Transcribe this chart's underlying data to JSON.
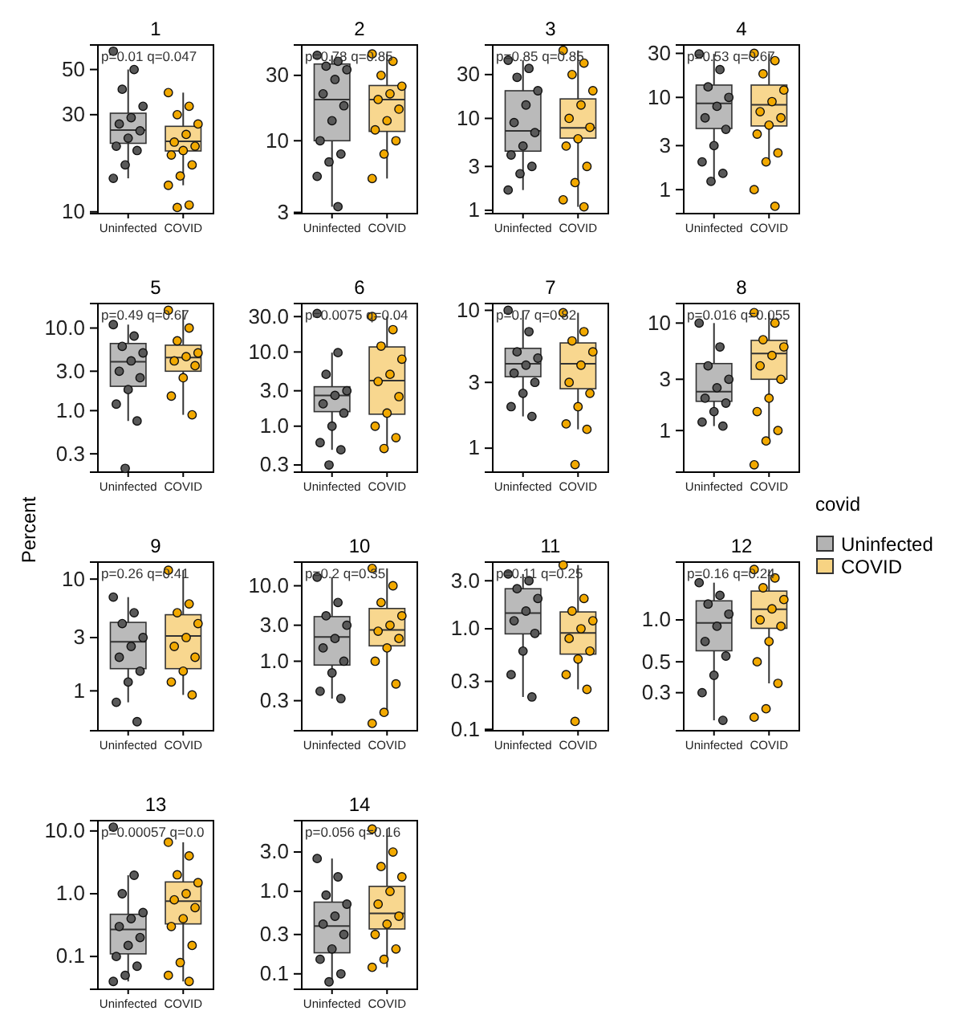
{
  "chart_data": [
    {
      "type": "box",
      "title": "1",
      "log": true,
      "categories": [
        "Uninfected",
        "COVID"
      ],
      "ylim": [
        9.8,
        66
      ],
      "yticks": [
        10,
        30,
        50
      ],
      "annotations": [
        "p=0.01 q=0.047"
      ],
      "series": [
        {
          "type": "box",
          "color": "#b3b3b3",
          "boxes": [
            {
              "low": 14.6,
              "q1": 21.7,
              "median": 25.2,
              "q3": 30.5,
              "high": 50
            },
            null
          ]
        },
        {
          "type": "box",
          "color": "#f7d383",
          "boxes": [
            null,
            {
              "low": 13.5,
              "q1": 19.9,
              "median": 22.2,
              "q3": 26.3,
              "high": 38.5
            }
          ]
        },
        {
          "type": "scatter",
          "color": "#595959",
          "x": [
            "Uninfected",
            "Uninfected",
            "Uninfected",
            "Uninfected",
            "Uninfected",
            "Uninfected",
            "Uninfected",
            "Uninfected",
            "Uninfected",
            "Uninfected",
            "Uninfected",
            "Uninfected"
          ],
          "values": [
            61.5,
            50,
            40,
            33,
            29,
            27,
            25,
            23,
            21,
            20,
            17,
            14.6
          ]
        },
        {
          "type": "scatter",
          "color": "#f2a900",
          "x": [
            "COVID",
            "COVID",
            "COVID",
            "COVID",
            "COVID",
            "COVID",
            "COVID",
            "COVID",
            "COVID",
            "COVID",
            "COVID",
            "COVID",
            "COVID",
            "COVID"
          ],
          "values": [
            38.5,
            33,
            30,
            27,
            24,
            22,
            21,
            20,
            19,
            17,
            15,
            13.5,
            10.8,
            10.5
          ]
        }
      ]
    },
    {
      "type": "box",
      "title": "2",
      "log": true,
      "categories": [
        "Uninfected",
        "COVID"
      ],
      "ylim": [
        2.94,
        50
      ],
      "yticks": [
        3,
        10,
        30
      ],
      "annotations": [
        "p=0.78 q=0.85"
      ],
      "series": [
        {
          "type": "box",
          "color": "#b3b3b3",
          "boxes": [
            {
              "low": 3.3,
              "q1": 10,
              "median": 20,
              "q3": 36.3,
              "high": 42
            },
            null
          ]
        },
        {
          "type": "box",
          "color": "#f7d383",
          "boxes": [
            null,
            {
              "low": 5.3,
              "q1": 11.7,
              "median": 20,
              "q3": 25.3,
              "high": 43
            }
          ]
        },
        {
          "type": "scatter",
          "color": "#595959",
          "x": [
            "Uninfected",
            "Uninfected",
            "Uninfected",
            "Uninfected",
            "Uninfected",
            "Uninfected",
            "Uninfected",
            "Uninfected",
            "Uninfected",
            "Uninfected",
            "Uninfected",
            "Uninfected",
            "Uninfected"
          ],
          "values": [
            42,
            38,
            35,
            33,
            28,
            22,
            18,
            14,
            10,
            8,
            7,
            5.5,
            3.3
          ]
        },
        {
          "type": "scatter",
          "color": "#f2a900",
          "x": [
            "COVID",
            "COVID",
            "COVID",
            "COVID",
            "COVID",
            "COVID",
            "COVID",
            "COVID",
            "COVID",
            "COVID",
            "COVID",
            "COVID"
          ],
          "values": [
            43,
            38,
            30,
            25,
            22,
            20,
            17,
            14,
            12,
            10,
            8,
            5.3
          ]
        }
      ]
    },
    {
      "type": "box",
      "title": "3",
      "log": true,
      "categories": [
        "Uninfected",
        "COVID"
      ],
      "ylim": [
        0.92,
        63
      ],
      "yticks": [
        1,
        3,
        10,
        30
      ],
      "annotations": [
        "p=0.85 q=0.85"
      ],
      "series": [
        {
          "type": "box",
          "color": "#b3b3b3",
          "boxes": [
            {
              "low": 1.66,
              "q1": 4.4,
              "median": 7.3,
              "q3": 20,
              "high": 43
            },
            null
          ]
        },
        {
          "type": "box",
          "color": "#f7d383",
          "boxes": [
            null,
            {
              "low": 1.09,
              "q1": 6.1,
              "median": 7.9,
              "q3": 16.3,
              "high": 55
            }
          ]
        },
        {
          "type": "scatter",
          "color": "#595959",
          "x": [
            "Uninfected",
            "Uninfected",
            "Uninfected",
            "Uninfected",
            "Uninfected",
            "Uninfected",
            "Uninfected",
            "Uninfected",
            "Uninfected",
            "Uninfected",
            "Uninfected",
            "Uninfected"
          ],
          "values": [
            43,
            35,
            28,
            20,
            14,
            9,
            7,
            5,
            4,
            3,
            2.5,
            1.66
          ]
        },
        {
          "type": "scatter",
          "color": "#f2a900",
          "x": [
            "COVID",
            "COVID",
            "COVID",
            "COVID",
            "COVID",
            "COVID",
            "COVID",
            "COVID",
            "COVID",
            "COVID",
            "COVID",
            "COVID",
            "COVID"
          ],
          "values": [
            55,
            40,
            30,
            20,
            14,
            10,
            8,
            6,
            5,
            3,
            2,
            1.3,
            1.09
          ]
        }
      ]
    },
    {
      "type": "box",
      "title": "4",
      "log": true,
      "categories": [
        "Uninfected",
        "COVID"
      ],
      "ylim": [
        0.55,
        37
      ],
      "yticks": [
        1,
        3,
        10,
        30
      ],
      "annotations": [
        "p=0.53 q=0.67"
      ],
      "series": [
        {
          "type": "box",
          "color": "#b3b3b3",
          "boxes": [
            {
              "low": 1.23,
              "q1": 4.6,
              "median": 8.6,
              "q3": 13.6,
              "high": 29.6
            },
            null
          ]
        },
        {
          "type": "box",
          "color": "#f7d383",
          "boxes": [
            null,
            {
              "low": 2,
              "q1": 4.9,
              "median": 8.3,
              "q3": 13.6,
              "high": 30
            }
          ]
        },
        {
          "type": "scatter",
          "color": "#595959",
          "x": [
            "Uninfected",
            "Uninfected",
            "Uninfected",
            "Uninfected",
            "Uninfected",
            "Uninfected",
            "Uninfected",
            "Uninfected",
            "Uninfected",
            "Uninfected",
            "Uninfected"
          ],
          "values": [
            29.6,
            20,
            13,
            10,
            8,
            6,
            4.5,
            3,
            2,
            1.5,
            1.23
          ]
        },
        {
          "type": "scatter",
          "color": "#f2a900",
          "x": [
            "COVID",
            "COVID",
            "COVID",
            "COVID",
            "COVID",
            "COVID",
            "COVID",
            "COVID",
            "COVID",
            "COVID",
            "COVID",
            "COVID",
            "COVID"
          ],
          "values": [
            30,
            25,
            18,
            12,
            9,
            7,
            6,
            5,
            4,
            2.5,
            2,
            1,
            0.66
          ]
        }
      ]
    },
    {
      "type": "box",
      "title": "5",
      "log": true,
      "categories": [
        "Uninfected",
        "COVID"
      ],
      "ylim": [
        0.18,
        19.8
      ],
      "yticks": [
        {
          "value": 0.3,
          "label": "0.3"
        },
        {
          "value": 1,
          "label": "1.0"
        },
        {
          "value": 3,
          "label": "3.0"
        },
        {
          "value": 10,
          "label": "10.0"
        }
      ],
      "annotations": [
        "p=0.49 q=0.67"
      ],
      "series": [
        {
          "type": "box",
          "color": "#b3b3b3",
          "boxes": [
            {
              "low": 0.75,
              "q1": 1.97,
              "median": 3.9,
              "q3": 6.5,
              "high": 11
            },
            null
          ]
        },
        {
          "type": "box",
          "color": "#f7d383",
          "boxes": [
            null,
            {
              "low": 0.89,
              "q1": 3,
              "median": 4.4,
              "q3": 6.2,
              "high": 16.4
            }
          ]
        },
        {
          "type": "scatter",
          "color": "#595959",
          "x": [
            "Uninfected",
            "Uninfected",
            "Uninfected",
            "Uninfected",
            "Uninfected",
            "Uninfected",
            "Uninfected",
            "Uninfected",
            "Uninfected",
            "Uninfected",
            "Uninfected"
          ],
          "values": [
            11,
            8,
            6,
            5,
            4,
            3,
            2.5,
            1.8,
            1.2,
            0.75,
            0.2
          ]
        },
        {
          "type": "scatter",
          "color": "#f2a900",
          "x": [
            "COVID",
            "COVID",
            "COVID",
            "COVID",
            "COVID",
            "COVID",
            "COVID",
            "COVID",
            "COVID",
            "COVID"
          ],
          "values": [
            16.4,
            10,
            7,
            5,
            4.5,
            4,
            3.5,
            2.5,
            1.5,
            0.89
          ]
        }
      ]
    },
    {
      "type": "box",
      "title": "6",
      "log": true,
      "categories": [
        "Uninfected",
        "COVID"
      ],
      "ylim": [
        0.24,
        45
      ],
      "yticks": [
        {
          "value": 0.3,
          "label": "0.3"
        },
        {
          "value": 1,
          "label": "1.0"
        },
        {
          "value": 3,
          "label": "3.0"
        },
        {
          "value": 10,
          "label": "10.0"
        },
        {
          "value": 30,
          "label": "30.0"
        }
      ],
      "annotations": [
        "p=0.0075 q=0.04"
      ],
      "series": [
        {
          "type": "box",
          "color": "#b3b3b3",
          "boxes": [
            {
              "low": 0.48,
              "q1": 1.57,
              "median": 2.6,
              "q3": 3.4,
              "high": 9.8
            },
            null
          ]
        },
        {
          "type": "box",
          "color": "#f7d383",
          "boxes": [
            null,
            {
              "low": 0.48,
              "q1": 1.45,
              "median": 4.1,
              "q3": 11.7,
              "high": 30
            }
          ]
        },
        {
          "type": "scatter",
          "color": "#595959",
          "x": [
            "Uninfected",
            "Uninfected",
            "Uninfected",
            "Uninfected",
            "Uninfected",
            "Uninfected",
            "Uninfected",
            "Uninfected",
            "Uninfected",
            "Uninfected",
            "Uninfected"
          ],
          "values": [
            33,
            9.8,
            5,
            3,
            2.6,
            2,
            1.5,
            1,
            0.6,
            0.48,
            0.3
          ]
        },
        {
          "type": "scatter",
          "color": "#f2a900",
          "x": [
            "COVID",
            "COVID",
            "COVID",
            "COVID",
            "COVID",
            "COVID",
            "COVID",
            "COVID",
            "COVID",
            "COVID",
            "COVID"
          ],
          "values": [
            30,
            20,
            12,
            8,
            5,
            4,
            2.5,
            1.5,
            1,
            0.7,
            0.5
          ]
        }
      ]
    },
    {
      "type": "box",
      "title": "7",
      "log": true,
      "categories": [
        "Uninfected",
        "COVID"
      ],
      "ylim": [
        0.67,
        11.2
      ],
      "yticks": [
        1,
        3,
        10
      ],
      "annotations": [
        "p=0.7 q=0.82"
      ],
      "series": [
        {
          "type": "box",
          "color": "#b3b3b3",
          "boxes": [
            {
              "low": 1.7,
              "q1": 3.3,
              "median": 4.1,
              "q3": 5.3,
              "high": 10
            },
            null
          ]
        },
        {
          "type": "box",
          "color": "#f7d383",
          "boxes": [
            null,
            {
              "low": 1.37,
              "q1": 2.7,
              "median": 4.1,
              "q3": 5.8,
              "high": 9.6
            }
          ]
        },
        {
          "type": "scatter",
          "color": "#595959",
          "x": [
            "Uninfected",
            "Uninfected",
            "Uninfected",
            "Uninfected",
            "Uninfected",
            "Uninfected",
            "Uninfected",
            "Uninfected",
            "Uninfected",
            "Uninfected"
          ],
          "values": [
            10,
            7,
            5,
            4.5,
            4,
            3.5,
            3,
            2.5,
            2,
            1.7
          ]
        },
        {
          "type": "scatter",
          "color": "#f2a900",
          "x": [
            "COVID",
            "COVID",
            "COVID",
            "COVID",
            "COVID",
            "COVID",
            "COVID",
            "COVID",
            "COVID",
            "COVID",
            "COVID"
          ],
          "values": [
            9.6,
            7,
            6,
            5,
            4,
            3,
            2.5,
            2,
            1.5,
            1.37,
            0.76
          ]
        }
      ]
    },
    {
      "type": "box",
      "title": "8",
      "log": true,
      "legend": "right",
      "legend_title": "covid",
      "categories": [
        "Uninfected",
        "COVID"
      ],
      "ylim": [
        0.41,
        15.2
      ],
      "yticks": [
        1,
        3,
        10
      ],
      "annotations": [
        "p=0.016 q=0.055"
      ],
      "series": [
        {
          "name": "Uninfected",
          "type": "box",
          "color": "#b3b3b3",
          "boxes": [
            {
              "low": 1.1,
              "q1": 1.87,
              "median": 2.3,
              "q3": 4.2,
              "high": 10
            },
            null
          ]
        },
        {
          "name": "COVID",
          "type": "box",
          "color": "#f7d383",
          "boxes": [
            null,
            {
              "low": 0.8,
              "q1": 3,
              "median": 5.2,
              "q3": 6.9,
              "high": 12.5
            }
          ]
        },
        {
          "type": "scatter",
          "color": "#595959",
          "x": [
            "Uninfected",
            "Uninfected",
            "Uninfected",
            "Uninfected",
            "Uninfected",
            "Uninfected",
            "Uninfected",
            "Uninfected",
            "Uninfected",
            "Uninfected"
          ],
          "values": [
            10,
            6,
            4,
            3,
            2.5,
            2,
            1.8,
            1.5,
            1.2,
            1.1
          ]
        },
        {
          "type": "scatter",
          "color": "#f2a900",
          "x": [
            "COVID",
            "COVID",
            "COVID",
            "COVID",
            "COVID",
            "COVID",
            "COVID",
            "COVID",
            "COVID",
            "COVID",
            "COVID",
            "COVID"
          ],
          "values": [
            12.5,
            10,
            7,
            6,
            5,
            4,
            3,
            2,
            1.5,
            1,
            0.8,
            0.48
          ]
        }
      ]
    },
    {
      "type": "box",
      "title": "9",
      "ylabel": "Percent",
      "log": true,
      "categories": [
        "Uninfected",
        "COVID"
      ],
      "ylim": [
        0.44,
        14.2
      ],
      "yticks": [
        1,
        3,
        10
      ],
      "annotations": [
        "p=0.26 q=0.41"
      ],
      "series": [
        {
          "type": "box",
          "color": "#b3b3b3",
          "boxes": [
            {
              "low": 0.79,
              "q1": 1.58,
              "median": 2.75,
              "q3": 4.1,
              "high": 6.9
            },
            null
          ]
        },
        {
          "type": "box",
          "color": "#f7d383",
          "boxes": [
            null,
            {
              "low": 0.92,
              "q1": 1.58,
              "median": 3.1,
              "q3": 4.8,
              "high": 12
            }
          ]
        },
        {
          "type": "scatter",
          "color": "#595959",
          "x": [
            "Uninfected",
            "Uninfected",
            "Uninfected",
            "Uninfected",
            "Uninfected",
            "Uninfected",
            "Uninfected",
            "Uninfected",
            "Uninfected",
            "Uninfected"
          ],
          "values": [
            6.9,
            5,
            4,
            3,
            2.5,
            2,
            1.5,
            1.2,
            0.79,
            0.53
          ]
        },
        {
          "type": "scatter",
          "color": "#f2a900",
          "x": [
            "COVID",
            "COVID",
            "COVID",
            "COVID",
            "COVID",
            "COVID",
            "COVID",
            "COVID",
            "COVID",
            "COVID"
          ],
          "values": [
            12,
            6,
            5,
            4,
            3,
            2.5,
            2,
            1.5,
            1.2,
            0.92
          ]
        }
      ]
    },
    {
      "type": "box",
      "title": "10",
      "log": true,
      "categories": [
        "Uninfected",
        "COVID"
      ],
      "ylim": [
        0.12,
        20.6
      ],
      "yticks": [
        {
          "value": 0.3,
          "label": "0.3"
        },
        {
          "value": 1,
          "label": "1.0"
        },
        {
          "value": 3,
          "label": "3.0"
        },
        {
          "value": 10,
          "label": "10.0"
        }
      ],
      "annotations": [
        "p=0.2 q=0.35"
      ],
      "series": [
        {
          "type": "box",
          "color": "#b3b3b3",
          "boxes": [
            {
              "low": 0.32,
              "q1": 0.89,
              "median": 2.1,
              "q3": 3.9,
              "high": 13
            },
            null
          ]
        },
        {
          "type": "box",
          "color": "#f7d383",
          "boxes": [
            null,
            {
              "low": 0.21,
              "q1": 1.6,
              "median": 2.6,
              "q3": 5,
              "high": 17
            }
          ]
        },
        {
          "type": "scatter",
          "color": "#595959",
          "x": [
            "Uninfected",
            "Uninfected",
            "Uninfected",
            "Uninfected",
            "Uninfected",
            "Uninfected",
            "Uninfected",
            "Uninfected",
            "Uninfected",
            "Uninfected"
          ],
          "values": [
            13,
            6,
            4,
            3,
            2,
            1.5,
            1,
            0.7,
            0.4,
            0.32
          ]
        },
        {
          "type": "scatter",
          "color": "#f2a900",
          "x": [
            "COVID",
            "COVID",
            "COVID",
            "COVID",
            "COVID",
            "COVID",
            "COVID",
            "COVID",
            "COVID",
            "COVID",
            "COVID",
            "COVID"
          ],
          "values": [
            17,
            10,
            6,
            4,
            3,
            2.5,
            2,
            1.5,
            1,
            0.5,
            0.21,
            0.15
          ]
        }
      ]
    },
    {
      "type": "box",
      "title": "11",
      "log": true,
      "categories": [
        "Uninfected",
        "COVID"
      ],
      "ylim": [
        0.097,
        4.6
      ],
      "yticks": [
        {
          "value": 0.1,
          "label": "0.1"
        },
        {
          "value": 0.3,
          "label": "0.3"
        },
        {
          "value": 1,
          "label": "1.0"
        },
        {
          "value": 3,
          "label": "3.0"
        }
      ],
      "annotations": [
        "p=0.11 q=0.25"
      ],
      "series": [
        {
          "type": "box",
          "color": "#b3b3b3",
          "boxes": [
            {
              "low": 0.21,
              "q1": 0.89,
              "median": 1.43,
              "q3": 2.5,
              "high": 3.5
            },
            null
          ]
        },
        {
          "type": "box",
          "color": "#f7d383",
          "boxes": [
            null,
            {
              "low": 0.25,
              "q1": 0.56,
              "median": 0.91,
              "q3": 1.47,
              "high": 4.3
            }
          ]
        },
        {
          "type": "scatter",
          "color": "#595959",
          "x": [
            "Uninfected",
            "Uninfected",
            "Uninfected",
            "Uninfected",
            "Uninfected",
            "Uninfected",
            "Uninfected",
            "Uninfected",
            "Uninfected",
            "Uninfected"
          ],
          "values": [
            3.5,
            3,
            2.5,
            2,
            1.5,
            1.2,
            0.9,
            0.6,
            0.35,
            0.21
          ]
        },
        {
          "type": "scatter",
          "color": "#f2a900",
          "x": [
            "COVID",
            "COVID",
            "COVID",
            "COVID",
            "COVID",
            "COVID",
            "COVID",
            "COVID",
            "COVID",
            "COVID",
            "COVID"
          ],
          "values": [
            4.3,
            2,
            1.5,
            1.2,
            1,
            0.8,
            0.6,
            0.5,
            0.35,
            0.25,
            0.12
          ]
        }
      ]
    },
    {
      "type": "box",
      "title": "12",
      "log": true,
      "categories": [
        "Uninfected",
        "COVID"
      ],
      "ylim": [
        0.16,
        2.6
      ],
      "yticks": [
        0.3,
        0.5,
        {
          "value": 1,
          "label": "1.0"
        }
      ],
      "annotations": [
        "p=0.16 q=0.24"
      ],
      "series": [
        {
          "type": "box",
          "color": "#b3b3b3",
          "boxes": [
            {
              "low": 0.19,
              "q1": 0.6,
              "median": 0.95,
              "q3": 1.37,
              "high": 1.85
            },
            null
          ]
        },
        {
          "type": "box",
          "color": "#f7d383",
          "boxes": [
            null,
            {
              "low": 0.35,
              "q1": 0.87,
              "median": 1.19,
              "q3": 1.61,
              "high": 2.3
            }
          ]
        },
        {
          "type": "scatter",
          "color": "#595959",
          "x": [
            "Uninfected",
            "Uninfected",
            "Uninfected",
            "Uninfected",
            "Uninfected",
            "Uninfected",
            "Uninfected",
            "Uninfected",
            "Uninfected",
            "Uninfected"
          ],
          "values": [
            1.85,
            1.5,
            1.3,
            1.1,
            0.9,
            0.7,
            0.55,
            0.4,
            0.3,
            0.19
          ]
        },
        {
          "type": "scatter",
          "color": "#f2a900",
          "x": [
            "COVID",
            "COVID",
            "COVID",
            "COVID",
            "COVID",
            "COVID",
            "COVID",
            "COVID",
            "COVID",
            "COVID",
            "COVID",
            "COVID"
          ],
          "values": [
            2.3,
            2,
            1.7,
            1.4,
            1.2,
            1,
            0.9,
            0.7,
            0.5,
            0.35,
            0.23,
            0.2
          ]
        }
      ]
    },
    {
      "type": "box",
      "title": "13",
      "log": true,
      "categories": [
        "Uninfected",
        "COVID"
      ],
      "ylim": [
        0.03,
        14.6
      ],
      "yticks": [
        {
          "value": 0.1,
          "label": "0.1"
        },
        {
          "value": 1,
          "label": "1.0"
        },
        {
          "value": 10,
          "label": "10.0"
        }
      ],
      "annotations": [
        "p=0.00057 q=0.0"
      ],
      "series": [
        {
          "type": "box",
          "color": "#b3b3b3",
          "boxes": [
            {
              "low": 0.04,
              "q1": 0.11,
              "median": 0.27,
              "q3": 0.47,
              "high": 1.97
            },
            null
          ]
        },
        {
          "type": "box",
          "color": "#f7d383",
          "boxes": [
            null,
            {
              "low": 0.04,
              "q1": 0.33,
              "median": 0.76,
              "q3": 1.54,
              "high": 6.6
            }
          ]
        },
        {
          "type": "scatter",
          "color": "#595959",
          "x": [
            "Uninfected",
            "Uninfected",
            "Uninfected",
            "Uninfected",
            "Uninfected",
            "Uninfected",
            "Uninfected",
            "Uninfected",
            "Uninfected",
            "Uninfected",
            "Uninfected",
            "Uninfected"
          ],
          "values": [
            11.5,
            1.97,
            1,
            0.5,
            0.4,
            0.3,
            0.2,
            0.15,
            0.1,
            0.07,
            0.05,
            0.04
          ]
        },
        {
          "type": "scatter",
          "color": "#f2a900",
          "x": [
            "COVID",
            "COVID",
            "COVID",
            "COVID",
            "COVID",
            "COVID",
            "COVID",
            "COVID",
            "COVID",
            "COVID",
            "COVID",
            "COVID",
            "COVID"
          ],
          "values": [
            6.6,
            4,
            2,
            1.5,
            1,
            0.8,
            0.6,
            0.4,
            0.3,
            0.15,
            0.08,
            0.05,
            0.04
          ]
        }
      ]
    },
    {
      "type": "box",
      "title": "14",
      "log": true,
      "categories": [
        "Uninfected",
        "COVID"
      ],
      "ylim": [
        0.065,
        7.2
      ],
      "yticks": [
        {
          "value": 0.1,
          "label": "0.1"
        },
        {
          "value": 0.3,
          "label": "0.3"
        },
        {
          "value": 1,
          "label": "1.0"
        },
        {
          "value": 3,
          "label": "3.0"
        }
      ],
      "annotations": [
        "p=0.056 q=0.16"
      ],
      "series": [
        {
          "type": "box",
          "color": "#b3b3b3",
          "boxes": [
            {
              "low": 0.08,
              "q1": 0.18,
              "median": 0.38,
              "q3": 0.74,
              "high": 2.5
            },
            null
          ]
        },
        {
          "type": "box",
          "color": "#f7d383",
          "boxes": [
            null,
            {
              "low": 0.12,
              "q1": 0.35,
              "median": 0.54,
              "q3": 1.15,
              "high": 5.7
            }
          ]
        },
        {
          "type": "scatter",
          "color": "#595959",
          "x": [
            "Uninfected",
            "Uninfected",
            "Uninfected",
            "Uninfected",
            "Uninfected",
            "Uninfected",
            "Uninfected",
            "Uninfected",
            "Uninfected",
            "Uninfected",
            "Uninfected"
          ],
          "values": [
            2.5,
            1.5,
            0.9,
            0.7,
            0.5,
            0.4,
            0.3,
            0.2,
            0.15,
            0.1,
            0.08
          ]
        },
        {
          "type": "scatter",
          "color": "#f2a900",
          "x": [
            "COVID",
            "COVID",
            "COVID",
            "COVID",
            "COVID",
            "COVID",
            "COVID",
            "COVID",
            "COVID",
            "COVID",
            "COVID",
            "COVID"
          ],
          "values": [
            5.7,
            3,
            2,
            1.5,
            1,
            0.7,
            0.5,
            0.4,
            0.3,
            0.2,
            0.15,
            0.12
          ]
        }
      ]
    }
  ]
}
